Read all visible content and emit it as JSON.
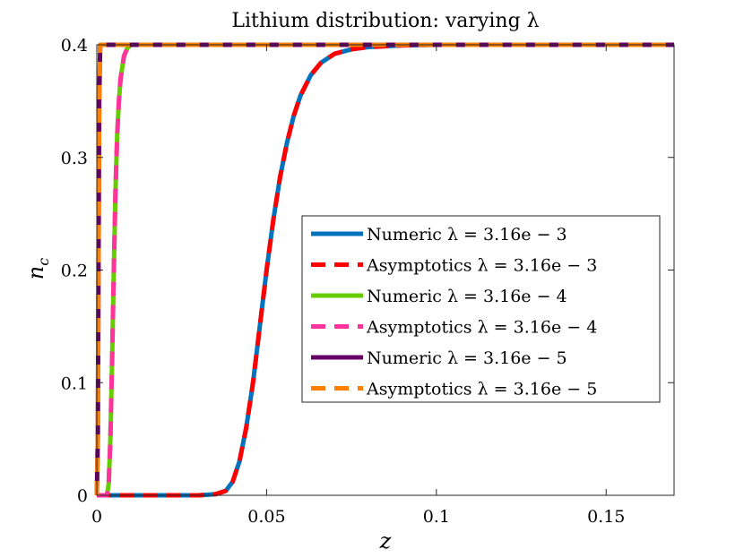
{
  "chart_data": {
    "type": "line",
    "title": "Lithium distribution: varying λ",
    "xlabel": "z",
    "ylabel": "n",
    "ylabel_subscript": "c",
    "xlim": [
      0,
      0.17
    ],
    "ylim": [
      0,
      0.4
    ],
    "xticks": [
      0,
      0.05,
      0.1,
      0.15
    ],
    "xtick_labels": [
      "0",
      "0.05",
      "0.1",
      "0.15"
    ],
    "yticks": [
      0,
      0.1,
      0.2,
      0.3,
      0.4
    ],
    "ytick_labels": [
      "0",
      "0.1",
      "0.2",
      "0.3",
      "0.4"
    ],
    "grid": false,
    "legend_position": "center-right",
    "series": [
      {
        "name": "Numeric λ = 3.16e − 3",
        "color": "#0072BD",
        "style": "solid",
        "x": [
          0,
          0.03,
          0.035,
          0.038,
          0.04,
          0.042,
          0.044,
          0.046,
          0.048,
          0.05,
          0.052,
          0.054,
          0.056,
          0.058,
          0.06,
          0.063,
          0.066,
          0.07,
          0.075,
          0.08,
          0.09,
          0.1,
          0.12,
          0.17
        ],
        "y": [
          0,
          0,
          0.001,
          0.004,
          0.012,
          0.03,
          0.06,
          0.1,
          0.15,
          0.2,
          0.245,
          0.283,
          0.313,
          0.337,
          0.355,
          0.373,
          0.384,
          0.392,
          0.396,
          0.398,
          0.3995,
          0.4,
          0.4,
          0.4
        ]
      },
      {
        "name": "Asymptotics λ = 3.16e − 3",
        "color": "#FF0000",
        "style": "dashed",
        "x": [
          0,
          0.03,
          0.035,
          0.038,
          0.04,
          0.042,
          0.044,
          0.046,
          0.048,
          0.05,
          0.052,
          0.054,
          0.056,
          0.058,
          0.06,
          0.063,
          0.066,
          0.07,
          0.075,
          0.08,
          0.09,
          0.1,
          0.12,
          0.17
        ],
        "y": [
          0,
          0,
          0.001,
          0.004,
          0.012,
          0.03,
          0.06,
          0.1,
          0.15,
          0.2,
          0.245,
          0.283,
          0.313,
          0.337,
          0.355,
          0.373,
          0.384,
          0.392,
          0.396,
          0.398,
          0.3995,
          0.4,
          0.4,
          0.4
        ]
      },
      {
        "name": "Numeric λ = 3.16e − 4",
        "color": "#66CC00",
        "style": "solid",
        "x": [
          0,
          0.003,
          0.0035,
          0.004,
          0.0045,
          0.005,
          0.0055,
          0.006,
          0.0065,
          0.007,
          0.008,
          0.009,
          0.01,
          0.012,
          0.17
        ],
        "y": [
          0,
          0,
          0.01,
          0.05,
          0.12,
          0.2,
          0.27,
          0.32,
          0.35,
          0.37,
          0.39,
          0.397,
          0.4,
          0.4,
          0.4
        ]
      },
      {
        "name": "Asymptotics λ = 3.16e − 4",
        "color": "#FF3399",
        "style": "dashed",
        "x": [
          0,
          0.003,
          0.0035,
          0.004,
          0.0045,
          0.005,
          0.0055,
          0.006,
          0.0065,
          0.007,
          0.008,
          0.009,
          0.01,
          0.012,
          0.17
        ],
        "y": [
          0,
          0,
          0.01,
          0.05,
          0.12,
          0.2,
          0.27,
          0.32,
          0.35,
          0.37,
          0.39,
          0.397,
          0.4,
          0.4,
          0.4
        ]
      },
      {
        "name": "Numeric λ = 3.16e − 5",
        "color": "#660066",
        "style": "solid",
        "x": [
          0,
          0.0003,
          0.0005,
          0.0007,
          0.001,
          0.17
        ],
        "y": [
          0,
          0.05,
          0.2,
          0.35,
          0.4,
          0.4
        ]
      },
      {
        "name": "Asymptotics λ = 3.16e − 5",
        "color": "#FF8000",
        "style": "dashed",
        "x": [
          0,
          0.0003,
          0.0005,
          0.0007,
          0.001,
          0.17
        ],
        "y": [
          0,
          0.05,
          0.2,
          0.35,
          0.4,
          0.4
        ]
      }
    ]
  }
}
